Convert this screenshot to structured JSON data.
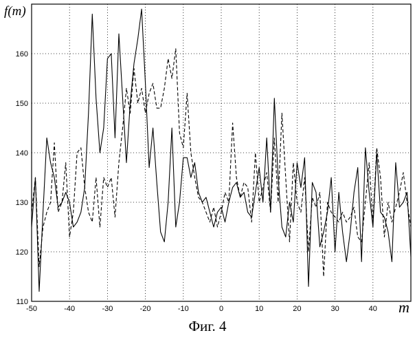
{
  "caption": "Фиг. 4",
  "chart_data": {
    "type": "line",
    "title": "",
    "xlabel": "m",
    "ylabel": "f(m)",
    "xlim": [
      -50,
      50
    ],
    "ylim": [
      110,
      170
    ],
    "xticks": [
      -50,
      -40,
      -30,
      -20,
      -10,
      0,
      10,
      20,
      30,
      40
    ],
    "yticks": [
      110,
      120,
      130,
      140,
      150,
      160
    ],
    "grid": true,
    "series": [
      {
        "style": "solid",
        "color": "#000000",
        "points": [
          [
            -50,
            125
          ],
          [
            -49,
            135
          ],
          [
            -48,
            112
          ],
          [
            -47,
            128
          ],
          [
            -46,
            143
          ],
          [
            -45,
            138
          ],
          [
            -44,
            135
          ],
          [
            -43,
            129
          ],
          [
            -42,
            130
          ],
          [
            -41,
            132
          ],
          [
            -40,
            130
          ],
          [
            -39,
            125
          ],
          [
            -38,
            126
          ],
          [
            -37,
            128
          ],
          [
            -36,
            133
          ],
          [
            -35,
            148
          ],
          [
            -34,
            168
          ],
          [
            -33,
            151
          ],
          [
            -32,
            140
          ],
          [
            -31,
            145
          ],
          [
            -30,
            159
          ],
          [
            -29,
            160
          ],
          [
            -28,
            143
          ],
          [
            -27,
            164
          ],
          [
            -26,
            151
          ],
          [
            -25,
            138
          ],
          [
            -24,
            150
          ],
          [
            -23,
            158
          ],
          [
            -22,
            163
          ],
          [
            -21,
            169
          ],
          [
            -20,
            154
          ],
          [
            -19,
            137
          ],
          [
            -18,
            145
          ],
          [
            -17,
            134
          ],
          [
            -16,
            124
          ],
          [
            -15,
            122
          ],
          [
            -14,
            130
          ],
          [
            -13,
            145
          ],
          [
            -12,
            125
          ],
          [
            -11,
            130
          ],
          [
            -10,
            139
          ],
          [
            -9,
            139
          ],
          [
            -8,
            135
          ],
          [
            -7,
            138
          ],
          [
            -6,
            132
          ],
          [
            -5,
            130
          ],
          [
            -4,
            131
          ],
          [
            -3,
            128
          ],
          [
            -2,
            125
          ],
          [
            -1,
            128
          ],
          [
            0,
            129
          ],
          [
            1,
            126
          ],
          [
            2,
            130
          ],
          [
            3,
            133
          ],
          [
            4,
            134
          ],
          [
            5,
            131
          ],
          [
            6,
            132
          ],
          [
            7,
            128
          ],
          [
            8,
            127
          ],
          [
            9,
            132
          ],
          [
            10,
            137
          ],
          [
            11,
            130
          ],
          [
            12,
            143
          ],
          [
            13,
            128
          ],
          [
            14,
            151
          ],
          [
            15,
            135
          ],
          [
            16,
            125
          ],
          [
            17,
            123
          ],
          [
            18,
            130
          ],
          [
            19,
            126
          ],
          [
            20,
            138
          ],
          [
            21,
            133
          ],
          [
            22,
            139
          ],
          [
            23,
            113
          ],
          [
            24,
            134
          ],
          [
            25,
            132
          ],
          [
            26,
            121
          ],
          [
            27,
            124
          ],
          [
            28,
            128
          ],
          [
            29,
            135
          ],
          [
            30,
            120
          ],
          [
            31,
            132
          ],
          [
            32,
            124
          ],
          [
            33,
            118
          ],
          [
            34,
            124
          ],
          [
            35,
            132
          ],
          [
            36,
            137
          ],
          [
            37,
            118
          ],
          [
            38,
            141
          ],
          [
            39,
            132
          ],
          [
            40,
            125
          ],
          [
            41,
            140
          ],
          [
            42,
            128
          ],
          [
            43,
            127
          ],
          [
            44,
            124
          ],
          [
            45,
            118
          ],
          [
            46,
            138
          ],
          [
            47,
            129
          ],
          [
            48,
            130
          ],
          [
            49,
            132
          ],
          [
            50,
            119
          ]
        ]
      },
      {
        "style": "dashed",
        "color": "#000000",
        "points": [
          [
            -50,
            128
          ],
          [
            -49,
            135
          ],
          [
            -48,
            117
          ],
          [
            -47,
            125
          ],
          [
            -46,
            128
          ],
          [
            -45,
            130
          ],
          [
            -44,
            142
          ],
          [
            -43,
            128
          ],
          [
            -42,
            130
          ],
          [
            -41,
            138
          ],
          [
            -40,
            123
          ],
          [
            -39,
            128
          ],
          [
            -38,
            140
          ],
          [
            -37,
            141
          ],
          [
            -36,
            133
          ],
          [
            -35,
            128
          ],
          [
            -34,
            126
          ],
          [
            -33,
            135
          ],
          [
            -32,
            125
          ],
          [
            -31,
            135
          ],
          [
            -30,
            133
          ],
          [
            -29,
            135
          ],
          [
            -28,
            127
          ],
          [
            -27,
            138
          ],
          [
            -26,
            145
          ],
          [
            -25,
            153
          ],
          [
            -24,
            148
          ],
          [
            -23,
            157
          ],
          [
            -22,
            150
          ],
          [
            -21,
            153
          ],
          [
            -20,
            148
          ],
          [
            -19,
            152
          ],
          [
            -18,
            154
          ],
          [
            -17,
            149
          ],
          [
            -16,
            149
          ],
          [
            -15,
            153
          ],
          [
            -14,
            159
          ],
          [
            -13,
            155
          ],
          [
            -12,
            161
          ],
          [
            -11,
            144
          ],
          [
            -10,
            141
          ],
          [
            -9,
            152
          ],
          [
            -8,
            140
          ],
          [
            -7,
            135
          ],
          [
            -6,
            131
          ],
          [
            -5,
            130
          ],
          [
            -4,
            128
          ],
          [
            -3,
            126
          ],
          [
            -2,
            129
          ],
          [
            -1,
            125
          ],
          [
            0,
            128
          ],
          [
            1,
            132
          ],
          [
            2,
            130
          ],
          [
            3,
            146
          ],
          [
            4,
            135
          ],
          [
            5,
            131
          ],
          [
            6,
            134
          ],
          [
            7,
            133
          ],
          [
            8,
            126
          ],
          [
            9,
            140
          ],
          [
            10,
            130
          ],
          [
            11,
            133
          ],
          [
            12,
            136
          ],
          [
            13,
            128
          ],
          [
            14,
            143
          ],
          [
            15,
            130
          ],
          [
            16,
            148
          ],
          [
            17,
            135
          ],
          [
            18,
            122
          ],
          [
            19,
            138
          ],
          [
            20,
            130
          ],
          [
            21,
            128
          ],
          [
            22,
            135
          ],
          [
            23,
            120
          ],
          [
            24,
            131
          ],
          [
            25,
            129
          ],
          [
            26,
            132
          ],
          [
            27,
            115
          ],
          [
            28,
            130
          ],
          [
            29,
            128
          ],
          [
            30,
            127
          ],
          [
            31,
            126
          ],
          [
            32,
            128
          ],
          [
            33,
            126
          ],
          [
            34,
            127
          ],
          [
            35,
            129
          ],
          [
            36,
            123
          ],
          [
            37,
            122
          ],
          [
            38,
            130
          ],
          [
            39,
            138
          ],
          [
            40,
            126
          ],
          [
            41,
            141
          ],
          [
            42,
            135
          ],
          [
            43,
            123
          ],
          [
            44,
            130
          ],
          [
            45,
            126
          ],
          [
            46,
            129
          ],
          [
            47,
            132
          ],
          [
            48,
            136
          ],
          [
            49,
            130
          ],
          [
            50,
            125
          ]
        ]
      }
    ]
  }
}
